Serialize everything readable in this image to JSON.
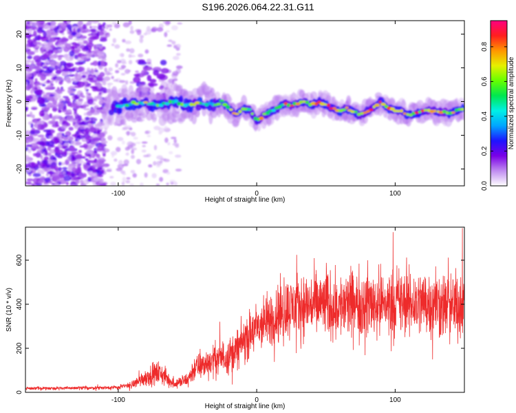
{
  "figure_title": "S196.2026.064.22.31.G11",
  "chart_data": [
    {
      "type": "heatmap",
      "name": "spectrogram",
      "xlabel": "Height of straight line (km)",
      "ylabel": "Frequency (Hz)",
      "xlim": [
        -167,
        150
      ],
      "ylim": [
        -25,
        24
      ],
      "xticks": [
        -100,
        0,
        100
      ],
      "yticks": [
        -20,
        -10,
        0,
        10,
        20
      ],
      "colorbar": {
        "label": "Normalized spectral amplitude",
        "range": [
          0,
          0.95
        ],
        "ticks": [
          "0.0",
          "0.2",
          "0.4",
          "0.6",
          "0.8"
        ],
        "colors": [
          "#ffffff",
          "#c08cf0",
          "#7a00e6",
          "#1e14ff",
          "#00a5ff",
          "#00f0e6",
          "#00e650",
          "#66ff00",
          "#e6f000",
          "#ff9600",
          "#ff1e1e",
          "#ff0080"
        ]
      },
      "ridge_frequency_hz": [
        [
          -105,
          -2
        ],
        [
          -100,
          -1.5
        ],
        [
          -90,
          -0.5
        ],
        [
          -80,
          -0.5
        ],
        [
          -70,
          -1
        ],
        [
          -60,
          0
        ],
        [
          -50,
          -1
        ],
        [
          -40,
          -0.5
        ],
        [
          -30,
          -1
        ],
        [
          -25,
          0
        ],
        [
          -20,
          -2
        ],
        [
          -15,
          -4
        ],
        [
          -10,
          -2
        ],
        [
          -5,
          -2.5
        ],
        [
          0,
          -6
        ],
        [
          5,
          -4
        ],
        [
          10,
          -3
        ],
        [
          15,
          -2
        ],
        [
          20,
          -0.5
        ],
        [
          25,
          -1
        ],
        [
          30,
          -0.5
        ],
        [
          35,
          0
        ],
        [
          40,
          -1
        ],
        [
          45,
          0
        ],
        [
          50,
          -1
        ],
        [
          55,
          -2
        ],
        [
          60,
          -3
        ],
        [
          65,
          -2
        ],
        [
          70,
          -3
        ],
        [
          75,
          -4
        ],
        [
          80,
          -3
        ],
        [
          85,
          -1.5
        ],
        [
          90,
          0
        ],
        [
          95,
          -2
        ],
        [
          100,
          -2.5
        ],
        [
          105,
          -3
        ],
        [
          110,
          -4
        ],
        [
          115,
          -3.5
        ],
        [
          120,
          -3
        ],
        [
          125,
          -2.5
        ],
        [
          130,
          -3
        ],
        [
          135,
          -3
        ],
        [
          140,
          -3.5
        ],
        [
          145,
          -2.5
        ],
        [
          150,
          -2
        ]
      ]
    },
    {
      "type": "line",
      "name": "snr",
      "xlabel": "Height of straight line (km)",
      "ylabel": "SNR (10 * v/v)",
      "xlim": [
        -167,
        150
      ],
      "ylim": [
        0,
        750
      ],
      "xticks": [
        -100,
        0,
        100
      ],
      "yticks": [
        0,
        200,
        400,
        600
      ],
      "color": "#ee2b2b",
      "series": [
        {
          "envelope_x": [
            -167,
            -120,
            -100,
            -90,
            -80,
            -70,
            -60,
            -50,
            -45,
            -40,
            -30,
            -20,
            -15,
            -10,
            -5,
            0,
            5,
            10,
            15,
            20,
            30,
            40,
            50,
            60,
            70,
            80,
            90,
            100,
            110,
            120,
            130,
            140,
            150
          ],
          "envelope_mean": [
            18,
            20,
            22,
            35,
            70,
            90,
            40,
            55,
            110,
            120,
            150,
            170,
            190,
            230,
            260,
            290,
            310,
            330,
            360,
            380,
            390,
            400,
            400,
            390,
            400,
            410,
            400,
            410,
            400,
            410,
            400,
            390,
            400
          ],
          "envelope_spread": [
            10,
            12,
            15,
            25,
            60,
            80,
            30,
            50,
            90,
            90,
            110,
            120,
            130,
            140,
            160,
            170,
            180,
            190,
            200,
            210,
            210,
            220,
            230,
            220,
            230,
            230,
            230,
            230,
            220,
            230,
            220,
            220,
            230
          ]
        }
      ]
    }
  ]
}
